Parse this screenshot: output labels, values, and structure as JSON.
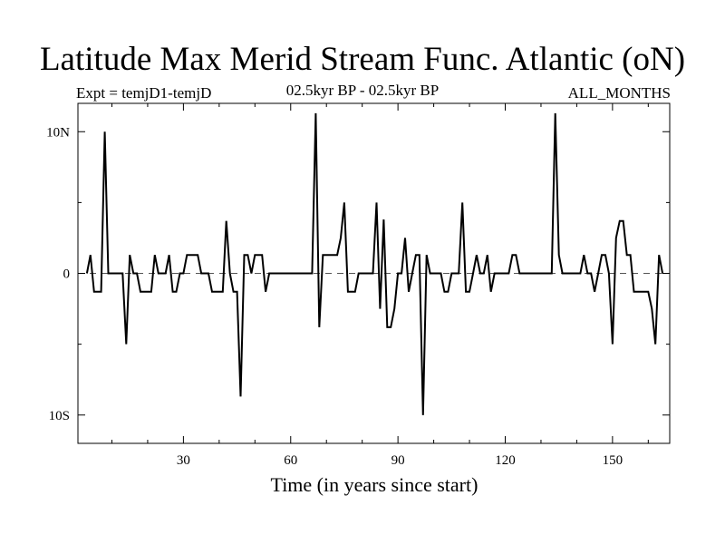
{
  "chart_data": {
    "type": "line",
    "title": "Latitude Max Merid Stream Func. Atlantic (oN)",
    "subtitle_left": "Expt = temjD1-temjD",
    "subtitle_center": "02.5kyr BP - 02.5kyr BP",
    "subtitle_right": "ALL_MONTHS",
    "xlabel": "Time (in years since start)",
    "ylabel": "",
    "xlim": [
      0.5,
      166
    ],
    "ylim": [
      -12,
      12
    ],
    "x_ticks": [
      30,
      60,
      90,
      120,
      150
    ],
    "x_tick_labels": [
      "30",
      "60",
      "90",
      "120",
      "150"
    ],
    "y_ticks": [
      10,
      0,
      -10
    ],
    "y_tick_labels": [
      "10N",
      "0",
      "10S"
    ],
    "zero_line": "dashed",
    "grid": false,
    "series": [
      {
        "color": "#000000",
        "points": [
          [
            3,
            0
          ],
          [
            4,
            1.3
          ],
          [
            5,
            -1.3
          ],
          [
            6,
            -1.3
          ],
          [
            7,
            -1.3
          ],
          [
            8,
            10
          ],
          [
            9,
            0
          ],
          [
            10,
            0
          ],
          [
            11,
            0
          ],
          [
            12,
            0
          ],
          [
            13,
            0
          ],
          [
            14,
            -5
          ],
          [
            15,
            1.3
          ],
          [
            16,
            0
          ],
          [
            17,
            0
          ],
          [
            18,
            -1.3
          ],
          [
            19,
            -1.3
          ],
          [
            20,
            -1.3
          ],
          [
            21,
            -1.3
          ],
          [
            22,
            1.3
          ],
          [
            23,
            0
          ],
          [
            24,
            0
          ],
          [
            25,
            0
          ],
          [
            26,
            1.3
          ],
          [
            27,
            -1.3
          ],
          [
            28,
            -1.3
          ],
          [
            29,
            0
          ],
          [
            30,
            0
          ],
          [
            31,
            1.3
          ],
          [
            32,
            1.3
          ],
          [
            33,
            1.3
          ],
          [
            34,
            1.3
          ],
          [
            35,
            0
          ],
          [
            36,
            0
          ],
          [
            37,
            0
          ],
          [
            38,
            -1.3
          ],
          [
            39,
            -1.3
          ],
          [
            40,
            -1.3
          ],
          [
            41,
            -1.3
          ],
          [
            42,
            3.7
          ],
          [
            43,
            0
          ],
          [
            44,
            -1.3
          ],
          [
            45,
            -1.3
          ],
          [
            46,
            -8.7
          ],
          [
            47,
            1.3
          ],
          [
            48,
            1.3
          ],
          [
            49,
            0
          ],
          [
            50,
            1.3
          ],
          [
            51,
            1.3
          ],
          [
            52,
            1.3
          ],
          [
            53,
            -1.3
          ],
          [
            54,
            0
          ],
          [
            55,
            0
          ],
          [
            56,
            0
          ],
          [
            57,
            0
          ],
          [
            58,
            0
          ],
          [
            59,
            0
          ],
          [
            60,
            0
          ],
          [
            61,
            0
          ],
          [
            62,
            0
          ],
          [
            63,
            0
          ],
          [
            64,
            0
          ],
          [
            65,
            0
          ],
          [
            66,
            0
          ],
          [
            67,
            11.3
          ],
          [
            68,
            -3.8
          ],
          [
            69,
            1.3
          ],
          [
            70,
            1.3
          ],
          [
            71,
            1.3
          ],
          [
            72,
            1.3
          ],
          [
            73,
            1.3
          ],
          [
            74,
            2.5
          ],
          [
            75,
            5
          ],
          [
            76,
            -1.3
          ],
          [
            77,
            -1.3
          ],
          [
            78,
            -1.3
          ],
          [
            79,
            0
          ],
          [
            80,
            0
          ],
          [
            81,
            0
          ],
          [
            82,
            0
          ],
          [
            83,
            0
          ],
          [
            84,
            5
          ],
          [
            85,
            -2.5
          ],
          [
            86,
            3.8
          ],
          [
            87,
            -3.8
          ],
          [
            88,
            -3.8
          ],
          [
            89,
            -2.5
          ],
          [
            90,
            0
          ],
          [
            91,
            0
          ],
          [
            92,
            2.5
          ],
          [
            93,
            -1.3
          ],
          [
            94,
            0
          ],
          [
            95,
            1.3
          ],
          [
            96,
            1.3
          ],
          [
            97,
            -10
          ],
          [
            98,
            1.3
          ],
          [
            99,
            0
          ],
          [
            100,
            0
          ],
          [
            101,
            0
          ],
          [
            102,
            0
          ],
          [
            103,
            -1.3
          ],
          [
            104,
            -1.3
          ],
          [
            105,
            0
          ],
          [
            106,
            0
          ],
          [
            107,
            0
          ],
          [
            108,
            5
          ],
          [
            109,
            -1.3
          ],
          [
            110,
            -1.3
          ],
          [
            111,
            0
          ],
          [
            112,
            1.3
          ],
          [
            113,
            0
          ],
          [
            114,
            0
          ],
          [
            115,
            1.3
          ],
          [
            116,
            -1.3
          ],
          [
            117,
            0
          ],
          [
            118,
            0
          ],
          [
            119,
            0
          ],
          [
            120,
            0
          ],
          [
            121,
            0
          ],
          [
            122,
            1.3
          ],
          [
            123,
            1.3
          ],
          [
            124,
            0
          ],
          [
            125,
            0
          ],
          [
            126,
            0
          ],
          [
            127,
            0
          ],
          [
            128,
            0
          ],
          [
            129,
            0
          ],
          [
            130,
            0
          ],
          [
            131,
            0
          ],
          [
            132,
            0
          ],
          [
            133,
            0
          ],
          [
            134,
            11.3
          ],
          [
            135,
            1.3
          ],
          [
            136,
            0
          ],
          [
            137,
            0
          ],
          [
            138,
            0
          ],
          [
            139,
            0
          ],
          [
            140,
            0
          ],
          [
            141,
            0
          ],
          [
            142,
            1.3
          ],
          [
            143,
            0
          ],
          [
            144,
            0
          ],
          [
            145,
            -1.3
          ],
          [
            146,
            0
          ],
          [
            147,
            1.3
          ],
          [
            148,
            1.3
          ],
          [
            149,
            0
          ],
          [
            150,
            -5
          ],
          [
            151,
            2.5
          ],
          [
            152,
            3.7
          ],
          [
            153,
            3.7
          ],
          [
            154,
            1.3
          ],
          [
            155,
            1.3
          ],
          [
            156,
            -1.3
          ],
          [
            157,
            -1.3
          ],
          [
            158,
            -1.3
          ],
          [
            159,
            -1.3
          ],
          [
            160,
            -1.3
          ],
          [
            161,
            -2.5
          ],
          [
            162,
            -5
          ],
          [
            163,
            1.3
          ],
          [
            164,
            0
          ]
        ]
      }
    ]
  }
}
